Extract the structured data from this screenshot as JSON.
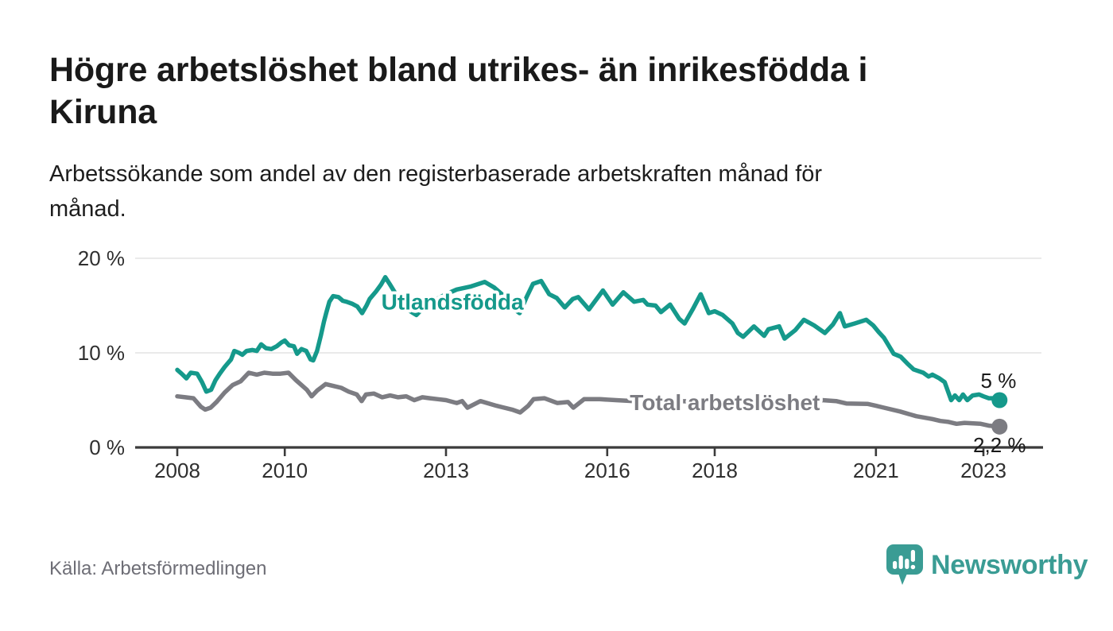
{
  "header": {
    "title_lines": [
      "Högre arbetslöshet bland utrikes- än inrikesfödda i",
      "Kiruna"
    ],
    "subtitle_lines": [
      "Arbetssökande som andel av den registerbaserade arbetskraften månad för",
      "månad."
    ]
  },
  "footer": {
    "source": "Källa: Arbetsförmedlingen",
    "logo": {
      "brand": "Newsworthy",
      "color": "#3a9c94",
      "icon": "newsworthy-speech-bubble-bar-chart-icon"
    }
  },
  "chart_data": {
    "type": "line",
    "title": "Högre arbetslöshet bland utrikes- än inrikesfödda i Kiruna",
    "subtitle": "Arbetssökande som andel av den registerbaserade arbetskraften månad för månad.",
    "source": "Källa: Arbetsförmedlingen",
    "x_unit": "år (månadsvisa värden)",
    "y_unit": "procent av registerbaserad arbetskraft",
    "x_ticks": [
      2008,
      2010,
      2013,
      2016,
      2018,
      2021,
      2023
    ],
    "y_ticks": [
      0,
      10,
      20
    ],
    "y_tick_suffix": " %",
    "x_range": [
      2008.0,
      2023.3
    ],
    "y_range": [
      0,
      21
    ],
    "grid": "horizontal",
    "legend_position": "inline-labels",
    "colors": {
      "utlandsfodda": "#15998b",
      "total": "#7c7c82",
      "axis": "#3b3b3b",
      "gridline": "#e3e3e3",
      "tick_label": "#2f2f2f",
      "end_label": "#191919"
    },
    "annotations": {
      "series_labels": [
        {
          "series": "utlandsfodda",
          "text": "Utlandsfödda",
          "x": 2013.12,
          "y": 14.6
        },
        {
          "series": "total",
          "text": "Total arbetslöshet",
          "x": 2018.19,
          "y": 3.95
        }
      ],
      "end_labels": [
        {
          "series": "utlandsfodda",
          "text": "5 %",
          "x": 2023.28,
          "y": 6.3
        },
        {
          "series": "total",
          "text": "2,2 %",
          "x": 2023.3,
          "y": -0.5
        }
      ]
    },
    "series": [
      {
        "id": "utlandsfodda",
        "name": "Utlandsfödda",
        "color": "#15998b",
        "end_value_label": "5 %",
        "end_dot": true,
        "points": [
          [
            2008.0,
            8.2
          ],
          [
            2008.08,
            7.8
          ],
          [
            2008.17,
            7.3
          ],
          [
            2008.25,
            7.9
          ],
          [
            2008.37,
            7.8
          ],
          [
            2008.46,
            6.9
          ],
          [
            2008.54,
            5.9
          ],
          [
            2008.63,
            6.1
          ],
          [
            2008.71,
            7.1
          ],
          [
            2008.79,
            7.8
          ],
          [
            2008.88,
            8.5
          ],
          [
            2009.0,
            9.3
          ],
          [
            2009.06,
            10.2
          ],
          [
            2009.15,
            10.0
          ],
          [
            2009.21,
            9.8
          ],
          [
            2009.29,
            10.2
          ],
          [
            2009.4,
            10.3
          ],
          [
            2009.48,
            10.2
          ],
          [
            2009.56,
            10.9
          ],
          [
            2009.65,
            10.5
          ],
          [
            2009.75,
            10.4
          ],
          [
            2009.85,
            10.7
          ],
          [
            2009.94,
            11.1
          ],
          [
            2010.0,
            11.3
          ],
          [
            2010.08,
            10.8
          ],
          [
            2010.17,
            10.7
          ],
          [
            2010.23,
            9.9
          ],
          [
            2010.31,
            10.4
          ],
          [
            2010.4,
            10.2
          ],
          [
            2010.48,
            9.3
          ],
          [
            2010.53,
            9.2
          ],
          [
            2010.6,
            10.2
          ],
          [
            2010.67,
            11.8
          ],
          [
            2010.73,
            13.3
          ],
          [
            2010.77,
            14.2
          ],
          [
            2010.83,
            15.4
          ],
          [
            2010.9,
            16.0
          ],
          [
            2011.0,
            15.9
          ],
          [
            2011.08,
            15.5
          ],
          [
            2011.15,
            15.4
          ],
          [
            2011.25,
            15.2
          ],
          [
            2011.35,
            14.9
          ],
          [
            2011.44,
            14.2
          ],
          [
            2011.52,
            15.0
          ],
          [
            2011.58,
            15.7
          ],
          [
            2011.7,
            16.5
          ],
          [
            2011.79,
            17.2
          ],
          [
            2011.87,
            18.0
          ],
          [
            2011.95,
            17.3
          ],
          [
            2012.1,
            15.9
          ],
          [
            2012.25,
            14.7
          ],
          [
            2012.45,
            14.0
          ],
          [
            2012.6,
            14.9
          ],
          [
            2012.8,
            15.6
          ],
          [
            2013.0,
            16.2
          ],
          [
            2013.2,
            16.7
          ],
          [
            2013.45,
            17.0
          ],
          [
            2013.72,
            17.5
          ],
          [
            2013.9,
            16.9
          ],
          [
            2014.1,
            15.9
          ],
          [
            2014.25,
            14.7
          ],
          [
            2014.37,
            14.2
          ],
          [
            2014.5,
            15.9
          ],
          [
            2014.62,
            17.3
          ],
          [
            2014.77,
            17.6
          ],
          [
            2014.92,
            16.2
          ],
          [
            2015.06,
            15.8
          ],
          [
            2015.21,
            14.8
          ],
          [
            2015.36,
            15.7
          ],
          [
            2015.46,
            15.9
          ],
          [
            2015.66,
            14.6
          ],
          [
            2015.83,
            15.9
          ],
          [
            2015.92,
            16.6
          ],
          [
            2016.1,
            15.1
          ],
          [
            2016.3,
            16.4
          ],
          [
            2016.5,
            15.4
          ],
          [
            2016.67,
            15.6
          ],
          [
            2016.75,
            15.1
          ],
          [
            2016.9,
            15.0
          ],
          [
            2017.0,
            14.3
          ],
          [
            2017.17,
            15.1
          ],
          [
            2017.34,
            13.6
          ],
          [
            2017.44,
            13.1
          ],
          [
            2017.59,
            14.6
          ],
          [
            2017.74,
            16.2
          ],
          [
            2017.89,
            14.2
          ],
          [
            2018.0,
            14.4
          ],
          [
            2018.15,
            14.0
          ],
          [
            2018.33,
            13.1
          ],
          [
            2018.43,
            12.1
          ],
          [
            2018.53,
            11.7
          ],
          [
            2018.73,
            12.8
          ],
          [
            2018.92,
            11.8
          ],
          [
            2019.0,
            12.5
          ],
          [
            2019.2,
            12.8
          ],
          [
            2019.3,
            11.5
          ],
          [
            2019.5,
            12.4
          ],
          [
            2019.66,
            13.5
          ],
          [
            2019.85,
            12.9
          ],
          [
            2020.05,
            12.1
          ],
          [
            2020.2,
            13.0
          ],
          [
            2020.33,
            14.2
          ],
          [
            2020.42,
            12.8
          ],
          [
            2020.6,
            13.1
          ],
          [
            2020.82,
            13.5
          ],
          [
            2020.95,
            12.9
          ],
          [
            2021.05,
            12.2
          ],
          [
            2021.15,
            11.6
          ],
          [
            2021.33,
            9.9
          ],
          [
            2021.46,
            9.6
          ],
          [
            2021.58,
            8.9
          ],
          [
            2021.7,
            8.25
          ],
          [
            2021.88,
            7.9
          ],
          [
            2021.98,
            7.5
          ],
          [
            2022.05,
            7.7
          ],
          [
            2022.18,
            7.3
          ],
          [
            2022.28,
            6.9
          ],
          [
            2022.4,
            5.0
          ],
          [
            2022.47,
            5.5
          ],
          [
            2022.55,
            5.0
          ],
          [
            2022.62,
            5.6
          ],
          [
            2022.7,
            5.0
          ],
          [
            2022.8,
            5.5
          ],
          [
            2022.92,
            5.6
          ],
          [
            2023.0,
            5.4
          ],
          [
            2023.1,
            5.2
          ],
          [
            2023.2,
            5.2
          ],
          [
            2023.3,
            5.0
          ]
        ]
      },
      {
        "id": "total",
        "name": "Total arbetslöshet",
        "color": "#7c7c82",
        "end_value_label": "2,2 %",
        "end_dot": true,
        "points": [
          [
            2008.0,
            5.4
          ],
          [
            2008.15,
            5.3
          ],
          [
            2008.3,
            5.2
          ],
          [
            2008.44,
            4.3
          ],
          [
            2008.52,
            4.0
          ],
          [
            2008.62,
            4.2
          ],
          [
            2008.73,
            4.8
          ],
          [
            2008.88,
            5.8
          ],
          [
            2009.03,
            6.6
          ],
          [
            2009.18,
            7.0
          ],
          [
            2009.33,
            7.9
          ],
          [
            2009.48,
            7.7
          ],
          [
            2009.62,
            7.9
          ],
          [
            2009.77,
            7.8
          ],
          [
            2009.92,
            7.8
          ],
          [
            2010.07,
            7.9
          ],
          [
            2010.21,
            7.1
          ],
          [
            2010.41,
            6.1
          ],
          [
            2010.5,
            5.4
          ],
          [
            2010.6,
            6.0
          ],
          [
            2010.76,
            6.7
          ],
          [
            2010.9,
            6.5
          ],
          [
            2011.05,
            6.3
          ],
          [
            2011.19,
            5.9
          ],
          [
            2011.34,
            5.6
          ],
          [
            2011.43,
            4.9
          ],
          [
            2011.51,
            5.6
          ],
          [
            2011.66,
            5.7
          ],
          [
            2011.81,
            5.3
          ],
          [
            2011.96,
            5.5
          ],
          [
            2012.11,
            5.3
          ],
          [
            2012.26,
            5.4
          ],
          [
            2012.41,
            5.0
          ],
          [
            2012.56,
            5.3
          ],
          [
            2012.7,
            5.2
          ],
          [
            2012.85,
            5.1
          ],
          [
            2013.0,
            5.0
          ],
          [
            2013.2,
            4.7
          ],
          [
            2013.3,
            4.9
          ],
          [
            2013.4,
            4.2
          ],
          [
            2013.64,
            4.9
          ],
          [
            2013.94,
            4.4
          ],
          [
            2014.23,
            4.0
          ],
          [
            2014.38,
            3.7
          ],
          [
            2014.53,
            4.4
          ],
          [
            2014.63,
            5.1
          ],
          [
            2014.83,
            5.2
          ],
          [
            2015.07,
            4.7
          ],
          [
            2015.27,
            4.8
          ],
          [
            2015.37,
            4.2
          ],
          [
            2015.57,
            5.1
          ],
          [
            2015.86,
            5.1
          ],
          [
            2016.16,
            5.0
          ],
          [
            2016.5,
            4.9
          ],
          [
            2016.8,
            4.8
          ],
          [
            2017.1,
            4.8
          ],
          [
            2017.4,
            4.9
          ],
          [
            2017.7,
            4.8
          ],
          [
            2018.0,
            4.8
          ],
          [
            2018.3,
            4.7
          ],
          [
            2018.6,
            4.8
          ],
          [
            2019.0,
            4.8
          ],
          [
            2019.4,
            4.9
          ],
          [
            2019.8,
            4.9
          ],
          [
            2020.0,
            5.0
          ],
          [
            2020.26,
            4.9
          ],
          [
            2020.45,
            4.65
          ],
          [
            2020.85,
            4.6
          ],
          [
            2021.0,
            4.4
          ],
          [
            2021.15,
            4.2
          ],
          [
            2021.45,
            3.8
          ],
          [
            2021.75,
            3.3
          ],
          [
            2022.05,
            3.0
          ],
          [
            2022.2,
            2.8
          ],
          [
            2022.35,
            2.7
          ],
          [
            2022.5,
            2.5
          ],
          [
            2022.65,
            2.6
          ],
          [
            2022.95,
            2.5
          ],
          [
            2023.1,
            2.3
          ],
          [
            2023.3,
            2.2
          ]
        ]
      }
    ]
  }
}
